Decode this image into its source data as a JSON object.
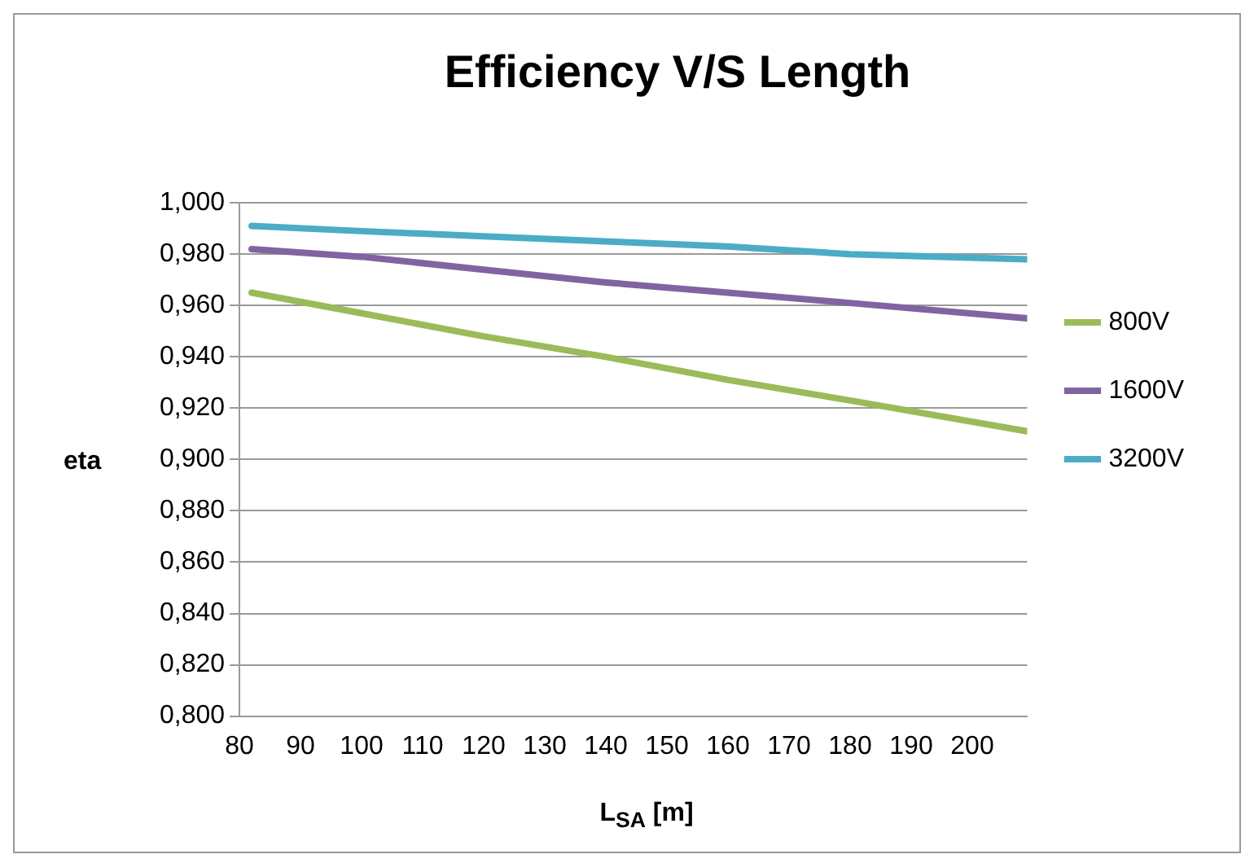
{
  "chart_data": {
    "type": "line",
    "title": "Efficiency V/S Length",
    "xlabel": "L$_{SA}$ [m]",
    "ylabel": "eta",
    "x": [
      82,
      100,
      120,
      140,
      160,
      180,
      209
    ],
    "series": [
      {
        "name": "800V",
        "color": "#9bbb59",
        "values": [
          0.965,
          0.957,
          0.948,
          0.94,
          0.931,
          0.923,
          0.911
        ]
      },
      {
        "name": "1600V",
        "color": "#8064a2",
        "values": [
          0.982,
          0.979,
          0.974,
          0.969,
          0.965,
          0.961,
          0.955
        ]
      },
      {
        "name": "3200V",
        "color": "#4bacc6",
        "values": [
          0.991,
          0.989,
          0.987,
          0.985,
          0.983,
          0.98,
          0.978
        ]
      }
    ],
    "xlim": [
      80,
      209
    ],
    "xticks": [
      80,
      90,
      100,
      110,
      120,
      130,
      140,
      150,
      160,
      170,
      180,
      190,
      200
    ],
    "ylim": [
      0.8,
      1
    ],
    "yticks": [
      {
        "value": 0.8,
        "label": "0,800"
      },
      {
        "value": 0.82,
        "label": "0,820"
      },
      {
        "value": 0.84,
        "label": "0,840"
      },
      {
        "value": 0.86,
        "label": "0,860"
      },
      {
        "value": 0.88,
        "label": "0,880"
      },
      {
        "value": 0.9,
        "label": "0,900"
      },
      {
        "value": 0.92,
        "label": "0,920"
      },
      {
        "value": 0.94,
        "label": "0,940"
      },
      {
        "value": 0.96,
        "label": "0,960"
      },
      {
        "value": 0.98,
        "label": "0,980"
      },
      {
        "value": 1,
        "label": "1,000"
      }
    ],
    "grid": "y",
    "legend": "right",
    "marker": "none",
    "line_style": "solid"
  }
}
